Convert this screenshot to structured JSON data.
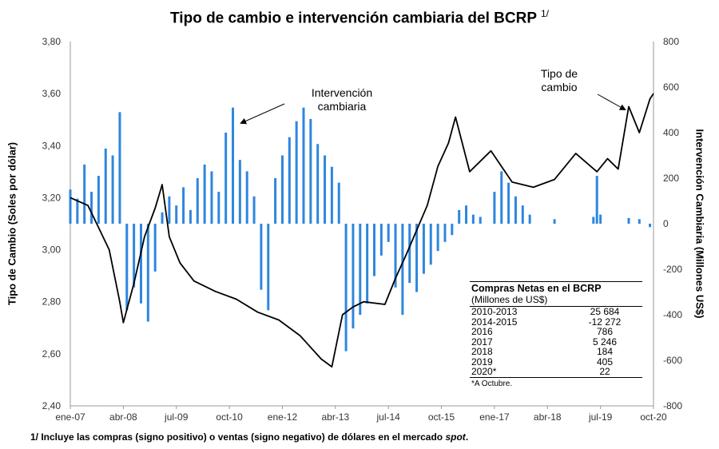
{
  "title": "Tipo de cambio e intervención cambiaria del BCRP",
  "title_note": "1/",
  "footnote": {
    "text": "1/ Incluye las compras (signo positivo) o ventas (signo negativo) de dólares en el mercado ",
    "italic": "spot",
    "end": "."
  },
  "annotations": {
    "intervencion_line1": "Intervención",
    "intervencion_line2": "cambiaria",
    "tipo_line1": "Tipo de",
    "tipo_line2": "cambio"
  },
  "table": {
    "header": "Compras Netas en el BCRP",
    "subheader": "(Millones de US$)",
    "rows": [
      {
        "label": "2010-2013",
        "value": "25 684"
      },
      {
        "label": "2014-2015",
        "value": "-12 272"
      },
      {
        "label": "2016",
        "value": "786"
      },
      {
        "label": "2017",
        "value": "5 246"
      },
      {
        "label": "2018",
        "value": "184"
      },
      {
        "label": "2019",
        "value": "405"
      },
      {
        "label": "2020*",
        "value": "22"
      }
    ],
    "note": "*A Octubre."
  },
  "colors": {
    "line": "#000000",
    "bars": "#2E86DE"
  },
  "chart_data": {
    "type": "bar+line",
    "ylabel_left": "Tipo de Cambio (Soles por dólar)",
    "ylabel_right": "Intervención Cambiaria (Millones US$)",
    "y_left_range": [
      2.4,
      3.8
    ],
    "y_right_range": [
      -800,
      800
    ],
    "y_left_ticks": [
      "2,40",
      "2,60",
      "2,80",
      "3,00",
      "3,20",
      "3,40",
      "3,60",
      "3,80"
    ],
    "y_right_ticks": [
      "-800",
      "-600",
      "-400",
      "-200",
      "0",
      "200",
      "400",
      "600",
      "800"
    ],
    "x_ticks": [
      "ene-07",
      "abr-08",
      "jul-09",
      "oct-10",
      "ene-12",
      "abr-13",
      "jul-14",
      "oct-15",
      "ene-17",
      "abr-18",
      "jul-19",
      "oct-20"
    ],
    "x_range": [
      "2007-01",
      "2020-10"
    ],
    "grid": false,
    "series": [
      {
        "name": "Tipo de cambio",
        "axis": "left",
        "type": "line",
        "points": [
          [
            "2007-01",
            3.2
          ],
          [
            "2007-06",
            3.17
          ],
          [
            "2007-12",
            3.0
          ],
          [
            "2008-03",
            2.8
          ],
          [
            "2008-04",
            2.72
          ],
          [
            "2008-07",
            2.87
          ],
          [
            "2008-10",
            3.05
          ],
          [
            "2009-01",
            3.16
          ],
          [
            "2009-03",
            3.25
          ],
          [
            "2009-05",
            3.05
          ],
          [
            "2009-08",
            2.95
          ],
          [
            "2009-12",
            2.88
          ],
          [
            "2010-06",
            2.84
          ],
          [
            "2010-12",
            2.81
          ],
          [
            "2011-06",
            2.76
          ],
          [
            "2011-12",
            2.73
          ],
          [
            "2012-06",
            2.67
          ],
          [
            "2012-12",
            2.58
          ],
          [
            "2013-03",
            2.55
          ],
          [
            "2013-06",
            2.75
          ],
          [
            "2013-09",
            2.78
          ],
          [
            "2013-12",
            2.8
          ],
          [
            "2014-06",
            2.79
          ],
          [
            "2014-09",
            2.89
          ],
          [
            "2014-12",
            2.98
          ],
          [
            "2015-06",
            3.17
          ],
          [
            "2015-09",
            3.32
          ],
          [
            "2015-12",
            3.41
          ],
          [
            "2016-02",
            3.51
          ],
          [
            "2016-06",
            3.3
          ],
          [
            "2016-12",
            3.38
          ],
          [
            "2017-06",
            3.26
          ],
          [
            "2017-12",
            3.24
          ],
          [
            "2018-06",
            3.27
          ],
          [
            "2018-12",
            3.37
          ],
          [
            "2019-06",
            3.3
          ],
          [
            "2019-09",
            3.35
          ],
          [
            "2019-12",
            3.31
          ],
          [
            "2020-03",
            3.55
          ],
          [
            "2020-06",
            3.45
          ],
          [
            "2020-09",
            3.58
          ],
          [
            "2020-10",
            3.6
          ]
        ]
      },
      {
        "name": "Intervención cambiaria",
        "axis": "right",
        "type": "bar",
        "points": [
          [
            "2007-01",
            150
          ],
          [
            "2007-03",
            110
          ],
          [
            "2007-05",
            260
          ],
          [
            "2007-07",
            140
          ],
          [
            "2007-09",
            210
          ],
          [
            "2007-11",
            330
          ],
          [
            "2008-01",
            300
          ],
          [
            "2008-03",
            490
          ],
          [
            "2008-05",
            -380
          ],
          [
            "2008-07",
            -280
          ],
          [
            "2008-09",
            -350
          ],
          [
            "2008-11",
            -430
          ],
          [
            "2009-01",
            -210
          ],
          [
            "2009-03",
            50
          ],
          [
            "2009-05",
            120
          ],
          [
            "2009-07",
            80
          ],
          [
            "2009-09",
            160
          ],
          [
            "2009-11",
            60
          ],
          [
            "2010-01",
            200
          ],
          [
            "2010-03",
            260
          ],
          [
            "2010-05",
            230
          ],
          [
            "2010-07",
            140
          ],
          [
            "2010-09",
            400
          ],
          [
            "2010-11",
            510
          ],
          [
            "2011-01",
            280
          ],
          [
            "2011-03",
            230
          ],
          [
            "2011-05",
            120
          ],
          [
            "2011-07",
            -290
          ],
          [
            "2011-09",
            -380
          ],
          [
            "2011-11",
            200
          ],
          [
            "2012-01",
            300
          ],
          [
            "2012-03",
            380
          ],
          [
            "2012-05",
            450
          ],
          [
            "2012-07",
            510
          ],
          [
            "2012-09",
            460
          ],
          [
            "2012-11",
            350
          ],
          [
            "2013-01",
            300
          ],
          [
            "2013-03",
            250
          ],
          [
            "2013-05",
            180
          ],
          [
            "2013-07",
            -560
          ],
          [
            "2013-09",
            -460
          ],
          [
            "2013-11",
            -400
          ],
          [
            "2014-01",
            -350
          ],
          [
            "2014-03",
            -230
          ],
          [
            "2014-05",
            -140
          ],
          [
            "2014-07",
            -80
          ],
          [
            "2014-09",
            -280
          ],
          [
            "2014-11",
            -400
          ],
          [
            "2015-01",
            -260
          ],
          [
            "2015-03",
            -300
          ],
          [
            "2015-05",
            -220
          ],
          [
            "2015-07",
            -180
          ],
          [
            "2015-09",
            -120
          ],
          [
            "2015-11",
            -80
          ],
          [
            "2016-01",
            -50
          ],
          [
            "2016-03",
            60
          ],
          [
            "2016-05",
            80
          ],
          [
            "2016-07",
            40
          ],
          [
            "2016-09",
            30
          ],
          [
            "2017-01",
            140
          ],
          [
            "2017-03",
            230
          ],
          [
            "2017-05",
            180
          ],
          [
            "2017-07",
            120
          ],
          [
            "2017-09",
            80
          ],
          [
            "2017-11",
            40
          ],
          [
            "2018-06",
            20
          ],
          [
            "2019-05",
            30
          ],
          [
            "2019-06",
            210
          ],
          [
            "2019-07",
            40
          ],
          [
            "2020-03",
            25
          ],
          [
            "2020-06",
            20
          ],
          [
            "2020-09",
            -15
          ]
        ]
      }
    ]
  }
}
